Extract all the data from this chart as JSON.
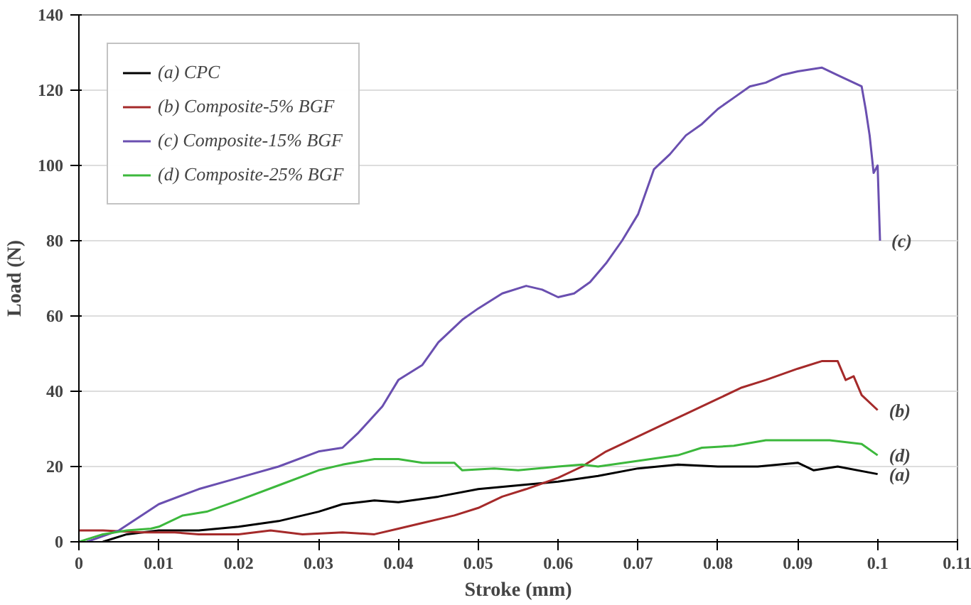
{
  "chart_data": {
    "type": "line",
    "xlabel": "Stroke (mm)",
    "ylabel": "Load (N)",
    "xlim": [
      0,
      0.11
    ],
    "xticks": [
      0,
      0.01,
      0.02,
      0.03,
      0.04,
      0.05,
      0.06,
      0.07,
      0.08,
      0.09,
      0.1,
      0.11
    ],
    "ylim": [
      0,
      140
    ],
    "yticks": [
      0,
      20,
      40,
      60,
      80,
      100,
      120,
      140
    ],
    "grid": "y",
    "legend": "top left",
    "series": [
      {
        "name": "(a) CPC",
        "color": "#000000",
        "x": [
          0.003,
          0.006,
          0.01,
          0.015,
          0.02,
          0.025,
          0.03,
          0.033,
          0.037,
          0.04,
          0.045,
          0.05,
          0.055,
          0.06,
          0.065,
          0.07,
          0.075,
          0.08,
          0.085,
          0.09,
          0.092,
          0.095,
          0.1
        ],
        "values": [
          0,
          2,
          3,
          3,
          4,
          5.5,
          8,
          10,
          11,
          10.5,
          12,
          14,
          15,
          16,
          17.5,
          19.5,
          20.5,
          20,
          20,
          21,
          19,
          20,
          18
        ]
      },
      {
        "name": "(b) Composite-5% BGF",
        "color": "#a52a2a",
        "x": [
          0,
          0.003,
          0.008,
          0.012,
          0.015,
          0.02,
          0.024,
          0.028,
          0.033,
          0.037,
          0.04,
          0.043,
          0.047,
          0.05,
          0.053,
          0.056,
          0.06,
          0.063,
          0.066,
          0.07,
          0.073,
          0.076,
          0.08,
          0.083,
          0.086,
          0.09,
          0.093,
          0.095,
          0.096,
          0.097,
          0.098,
          0.1
        ],
        "values": [
          3,
          3,
          2.5,
          2.5,
          2,
          2,
          3,
          2,
          2.5,
          2,
          3.5,
          5,
          7,
          9,
          12,
          14,
          17,
          20,
          24,
          28,
          31,
          34,
          38,
          41,
          43,
          46,
          48,
          48,
          43,
          44,
          39,
          35
        ]
      },
      {
        "name": "(c) Composite-15% BGF",
        "color": "#6a4fb0",
        "x": [
          0.001,
          0.005,
          0.01,
          0.015,
          0.02,
          0.025,
          0.03,
          0.033,
          0.035,
          0.038,
          0.04,
          0.043,
          0.045,
          0.048,
          0.05,
          0.053,
          0.056,
          0.058,
          0.06,
          0.062,
          0.064,
          0.066,
          0.068,
          0.07,
          0.072,
          0.074,
          0.076,
          0.078,
          0.08,
          0.082,
          0.084,
          0.086,
          0.088,
          0.09,
          0.093,
          0.095,
          0.098,
          0.0985,
          0.099,
          0.0995,
          0.1,
          0.1003
        ],
        "values": [
          0,
          3,
          10,
          14,
          17,
          20,
          24,
          25,
          29,
          36,
          43,
          47,
          53,
          59,
          62,
          66,
          68,
          67,
          65,
          66,
          69,
          74,
          80,
          87,
          99,
          103,
          108,
          111,
          115,
          118,
          121,
          122,
          124,
          125,
          126,
          124,
          121,
          115,
          108,
          98,
          100,
          80
        ]
      },
      {
        "name": "(d) Composite-25% BGF",
        "color": "#3cb83c",
        "x": [
          0,
          0.003,
          0.006,
          0.009,
          0.01,
          0.013,
          0.016,
          0.02,
          0.025,
          0.03,
          0.033,
          0.037,
          0.04,
          0.043,
          0.047,
          0.048,
          0.052,
          0.055,
          0.06,
          0.063,
          0.065,
          0.07,
          0.075,
          0.078,
          0.082,
          0.086,
          0.09,
          0.094,
          0.098,
          0.1
        ],
        "values": [
          0,
          2,
          3,
          3.5,
          4,
          7,
          8,
          11,
          15,
          19,
          20.5,
          22,
          22,
          21,
          21,
          19,
          19.5,
          19,
          20,
          20.5,
          20,
          21.5,
          23,
          25,
          25.5,
          27,
          27,
          27,
          26,
          23
        ]
      }
    ],
    "annotations": [
      "(c)",
      "(b)",
      "(d)",
      "(a)"
    ]
  }
}
